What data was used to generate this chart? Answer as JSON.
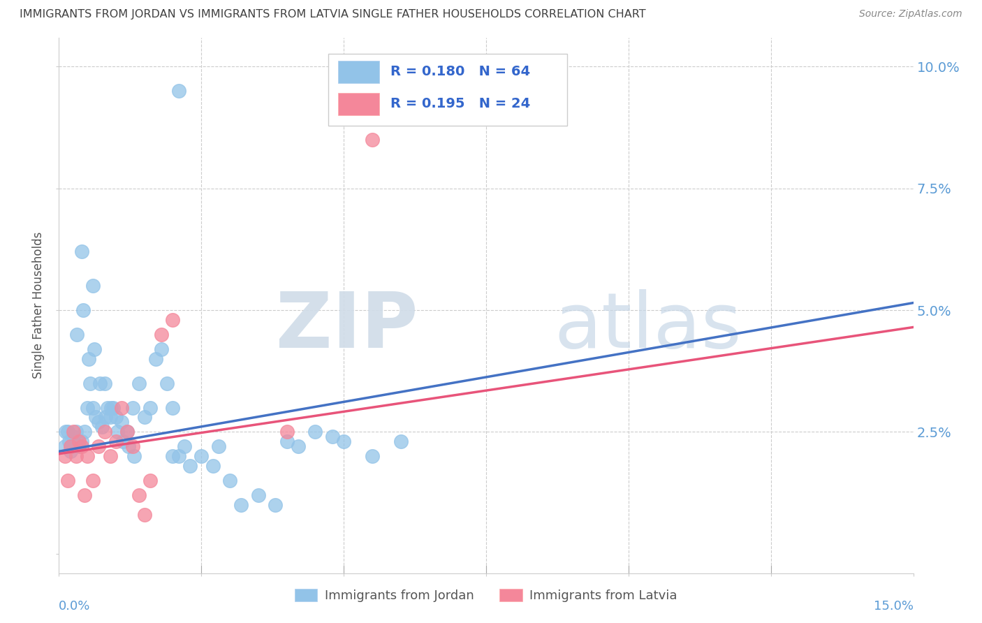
{
  "title": "IMMIGRANTS FROM JORDAN VS IMMIGRANTS FROM LATVIA SINGLE FATHER HOUSEHOLDS CORRELATION CHART",
  "source": "Source: ZipAtlas.com",
  "ylabel": "Single Father Households",
  "jordan_R": 0.18,
  "jordan_N": 64,
  "latvia_R": 0.195,
  "latvia_N": 24,
  "jordan_color": "#92C3E8",
  "latvia_color": "#F4879A",
  "jordan_line_color": "#4472C4",
  "latvia_line_color": "#E8547A",
  "background_color": "#FFFFFF",
  "grid_color": "#CCCCCC",
  "right_label_color": "#5B9BD5",
  "title_color": "#404040",
  "xlim": [
    0.0,
    15.0
  ],
  "ylim": [
    -0.4,
    10.6
  ],
  "ytick_values": [
    0.0,
    2.5,
    5.0,
    7.5,
    10.0
  ],
  "xtick_values": [
    0.0,
    2.5,
    5.0,
    7.5,
    10.0,
    12.5,
    15.0
  ],
  "jordan_line_x": [
    0.0,
    15.0
  ],
  "jordan_line_y": [
    2.1,
    5.15
  ],
  "latvia_line_x": [
    0.0,
    15.0
  ],
  "latvia_line_y": [
    2.05,
    4.65
  ],
  "jordan_scatter_x": [
    0.1,
    0.15,
    0.18,
    0.2,
    0.25,
    0.3,
    0.35,
    0.4,
    0.45,
    0.5,
    0.55,
    0.6,
    0.65,
    0.7,
    0.75,
    0.8,
    0.85,
    0.9,
    0.95,
    1.0,
    1.1,
    1.2,
    1.3,
    1.4,
    1.5,
    1.6,
    1.7,
    1.8,
    1.9,
    2.0,
    2.1,
    2.2,
    2.3,
    2.5,
    2.7,
    2.8,
    3.0,
    3.2,
    3.5,
    3.8,
    4.0,
    4.2,
    4.5,
    4.8,
    5.0,
    5.5,
    6.0,
    0.12,
    0.22,
    0.32,
    0.42,
    0.52,
    0.62,
    0.72,
    0.82,
    0.92,
    1.02,
    1.12,
    1.22,
    1.32,
    2.0,
    0.6,
    0.4,
    2.1
  ],
  "jordan_scatter_y": [
    2.2,
    2.5,
    2.3,
    2.1,
    2.4,
    2.5,
    2.2,
    2.3,
    2.5,
    3.0,
    3.5,
    3.0,
    2.8,
    2.7,
    2.6,
    3.5,
    3.0,
    2.8,
    3.0,
    2.8,
    2.7,
    2.5,
    3.0,
    3.5,
    2.8,
    3.0,
    4.0,
    4.2,
    3.5,
    3.0,
    2.0,
    2.2,
    1.8,
    2.0,
    1.8,
    2.2,
    1.5,
    1.0,
    1.2,
    1.0,
    2.3,
    2.2,
    2.5,
    2.4,
    2.3,
    2.0,
    2.3,
    2.5,
    2.2,
    4.5,
    5.0,
    4.0,
    4.2,
    3.5,
    2.8,
    3.0,
    2.5,
    2.3,
    2.2,
    2.0,
    2.0,
    5.5,
    6.2,
    9.5
  ],
  "latvia_scatter_x": [
    0.1,
    0.15,
    0.2,
    0.25,
    0.3,
    0.35,
    0.4,
    0.45,
    0.5,
    0.6,
    0.7,
    0.8,
    0.9,
    1.0,
    1.1,
    1.2,
    1.3,
    1.4,
    1.5,
    1.6,
    2.0,
    1.8,
    4.0,
    5.5
  ],
  "latvia_scatter_y": [
    2.0,
    1.5,
    2.2,
    2.5,
    2.0,
    2.3,
    2.2,
    1.2,
    2.0,
    1.5,
    2.2,
    2.5,
    2.0,
    2.3,
    3.0,
    2.5,
    2.2,
    1.2,
    0.8,
    1.5,
    4.8,
    4.5,
    2.5,
    8.5
  ]
}
